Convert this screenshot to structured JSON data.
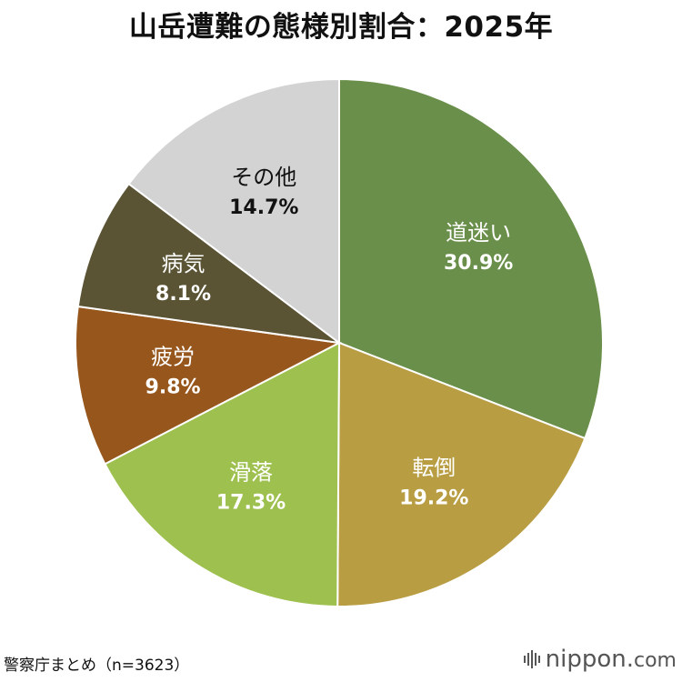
{
  "title": "山岳遭難の態様別割合：2025年",
  "source": "警察庁まとめ（n=3623）",
  "brand": {
    "name": "nippon",
    "dot": ".",
    "tld": "com"
  },
  "chart_data": {
    "type": "pie",
    "title": "山岳遭難の態様別割合：2025年",
    "start_angle_deg": 0,
    "direction": "clockwise",
    "slices": [
      {
        "label": "道迷い",
        "value": 30.9,
        "display": "30.9%",
        "color": "#6a8f4a",
        "text": "light"
      },
      {
        "label": "転倒",
        "value": 19.2,
        "display": "19.2%",
        "color": "#b89d43",
        "text": "light"
      },
      {
        "label": "滑落",
        "value": 17.3,
        "display": "17.3%",
        "color": "#9ec04f",
        "text": "light"
      },
      {
        "label": "疲労",
        "value": 9.8,
        "display": "9.8%",
        "color": "#96561c",
        "text": "light"
      },
      {
        "label": "病気",
        "value": 8.1,
        "display": "8.1%",
        "color": "#5a5434",
        "text": "light"
      },
      {
        "label": "その他",
        "value": 14.7,
        "display": "14.7%",
        "color": "#d3d3d3",
        "text": "dark"
      }
    ]
  }
}
